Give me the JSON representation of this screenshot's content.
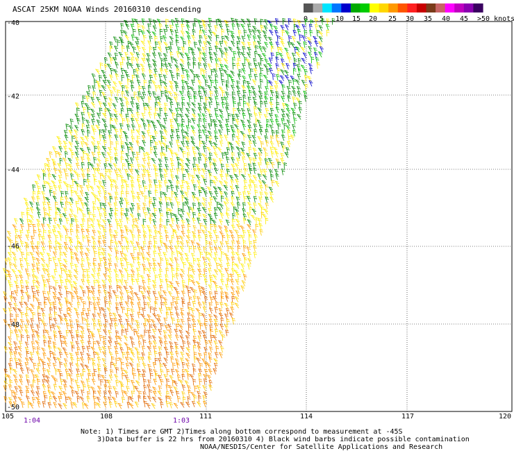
{
  "title": "ASCAT 25KM NOAA Winds 20160310 descending",
  "colorbar": {
    "labels": [
      "0",
      "5",
      "10",
      "15",
      "20",
      "25",
      "30",
      "35",
      "40",
      "45",
      ">50 knots"
    ],
    "colors": [
      "#555555",
      "#aaaaaa",
      "#00e5ff",
      "#0077ff",
      "#0000cc",
      "#00aa00",
      "#00cc00",
      "#ffff00",
      "#ffd700",
      "#ff9900",
      "#ff5500",
      "#ff2020",
      "#c80000",
      "#7a3b1a",
      "#c86464",
      "#ff00ff",
      "#c000c0",
      "#8a00b0",
      "#3a0060"
    ]
  },
  "lat_labels": [
    "-40",
    "-42",
    "-44",
    "-46",
    "-48",
    "-50"
  ],
  "lon_labels": [
    "105",
    "108",
    "111",
    "114",
    "117",
    "120"
  ],
  "time_labels": [
    "1:04",
    "1:03"
  ],
  "notes": {
    "line1": "Note: 1) Times are GMT 2)Times along bottom correspond to measurement at -45S",
    "line2": "3)Data buffer is 22 hrs from 20160310 4) Black wind barbs indicate possible contamination",
    "line3": "NOAA/NESDIS/Center for Satellite Applications and Research"
  },
  "wind_colors": {
    "blue": "#0000cc",
    "green": "#008800",
    "lightgreen": "#00bb00",
    "yellow": "#ffee00",
    "gold": "#ffcc00",
    "orange": "#ff9900",
    "darkorange": "#e06600"
  }
}
